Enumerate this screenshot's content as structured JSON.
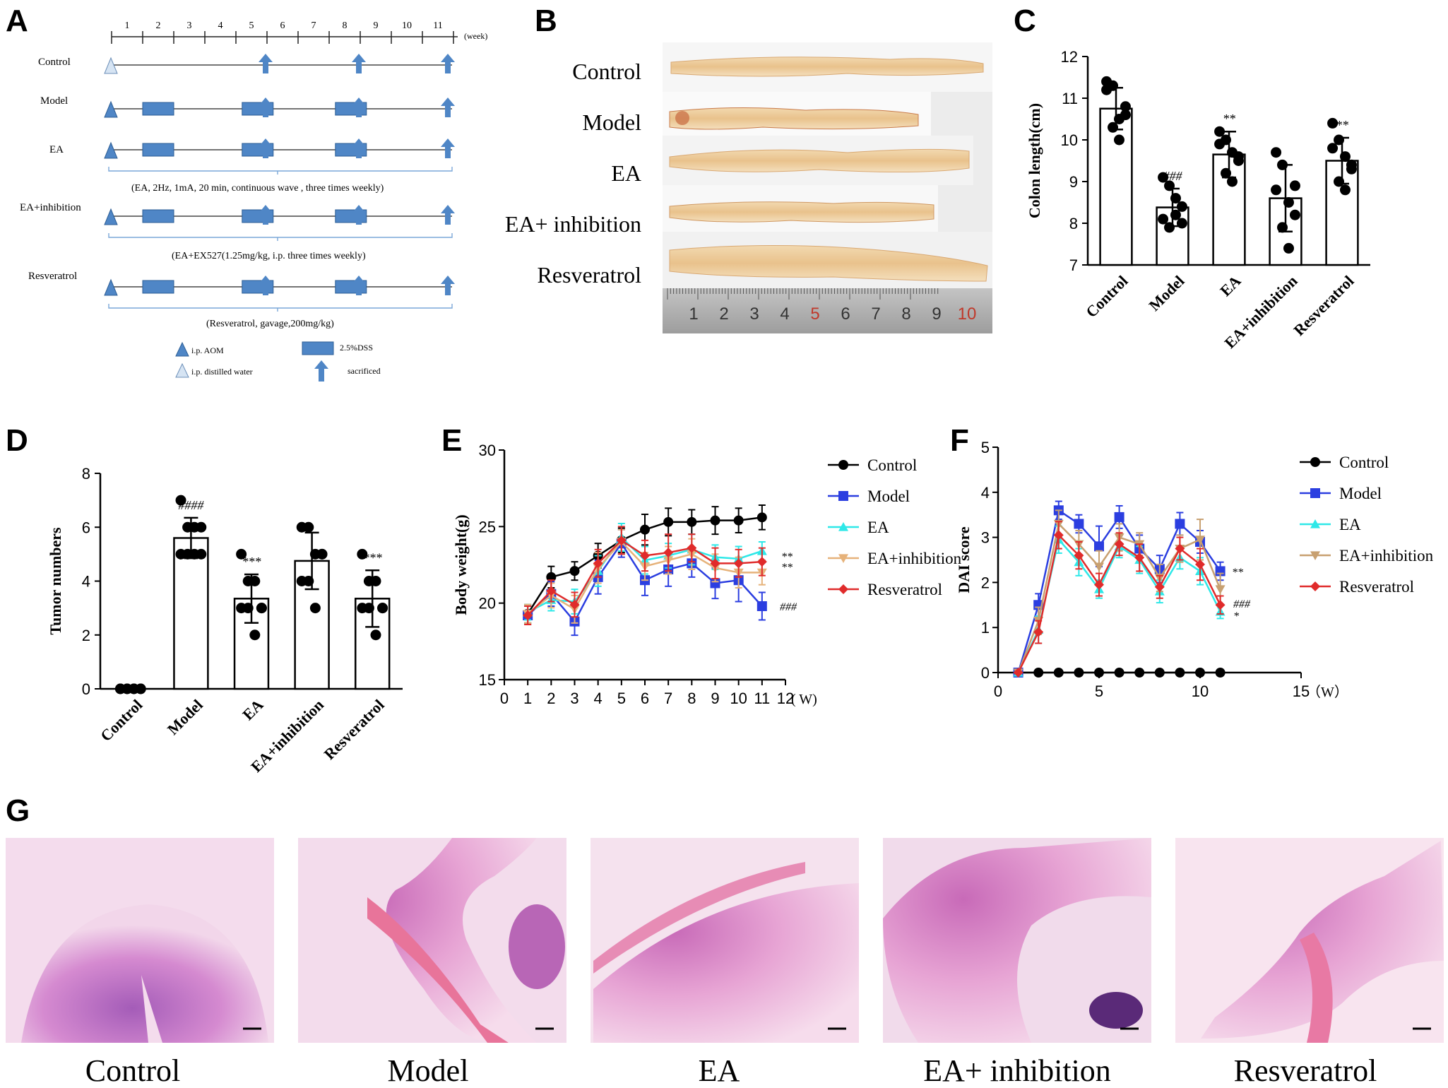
{
  "panel_letters": [
    "A",
    "B",
    "C",
    "D",
    "E",
    "F",
    "G"
  ],
  "panel_a": {
    "week_ticks": [
      "1",
      "2",
      "3",
      "4",
      "5",
      "6",
      "7",
      "8",
      "9",
      "10",
      "11"
    ],
    "week_unit": "(week)",
    "groups": [
      "Control",
      "Model",
      "EA",
      "EA+inhibition",
      "Resveratrol"
    ],
    "notes": [
      "(EA, 2Hz, 1mA, 20 min, continuous wave , three times weekly)",
      "(EA+EX527(1.25mg/kg, i.p. three times weekly)",
      "(Resveratrol, gavage,200mg/kg)"
    ],
    "legend": {
      "aom": "i.p. AOM",
      "dss": "2.5%DSS",
      "water": "i.p. distilled water",
      "sacrificed": "sacrificed"
    },
    "colors": {
      "marker": "#4f86c6",
      "line": "#222222",
      "bracket": "#7aa7d8"
    }
  },
  "panel_b": {
    "labels": [
      "Control",
      "Model",
      "EA",
      "EA+ inhibition",
      "Resveratrol"
    ],
    "ruler": [
      "1",
      "2",
      "3",
      "4",
      "5",
      "6",
      "7",
      "8",
      "9",
      "10"
    ]
  },
  "panel_g": {
    "captions": [
      "Control",
      "Model",
      "EA",
      "EA+ inhibition",
      "Resveratrol"
    ]
  },
  "chart_data": [
    {
      "panel": "C",
      "type": "bar",
      "ylabel": "Colon length(cm)",
      "ylim": [
        7,
        12
      ],
      "yticks": [
        7,
        8,
        9,
        10,
        11,
        12
      ],
      "categories": [
        "Control",
        "Model",
        "EA",
        "EA+inhibition",
        "Resveratrol"
      ],
      "values": [
        10.75,
        8.38,
        9.65,
        8.6,
        9.5
      ],
      "errors": [
        0.5,
        0.45,
        0.55,
        0.8,
        0.55
      ],
      "significance": [
        "",
        "###",
        "**",
        "",
        "**"
      ],
      "points": [
        [
          11.4,
          11.3,
          10.5,
          10.8,
          11.2,
          10.3,
          10.0,
          10.6
        ],
        [
          9.1,
          8.9,
          8.2,
          8.4,
          8.1,
          7.9,
          8.6,
          8.0
        ],
        [
          10.2,
          10.0,
          9.7,
          9.5,
          9.9,
          9.2,
          9.0,
          9.6
        ],
        [
          9.7,
          9.4,
          8.5,
          8.2,
          8.8,
          7.9,
          7.4,
          8.9
        ],
        [
          10.4,
          10.0,
          9.6,
          9.3,
          9.8,
          9.0,
          8.8,
          9.4
        ]
      ]
    },
    {
      "panel": "D",
      "type": "bar",
      "ylabel": "Tumor numbers",
      "ylim": [
        0,
        8
      ],
      "yticks": [
        0,
        2,
        4,
        6,
        8
      ],
      "categories": [
        "Control",
        "Model",
        "EA",
        "EA+inhibition",
        "Resveratrol"
      ],
      "values": [
        0,
        5.6,
        3.35,
        4.75,
        3.35
      ],
      "errors": [
        0,
        0.75,
        0.9,
        1.05,
        1.05
      ],
      "significance": [
        "",
        "####",
        "***",
        "",
        "***"
      ],
      "points": [
        [
          0,
          0,
          0,
          0,
          0,
          0,
          0,
          0
        ],
        [
          7,
          6,
          6,
          5,
          5,
          5,
          5,
          6
        ],
        [
          5,
          4,
          4,
          3,
          3,
          3,
          2,
          3
        ],
        [
          6,
          6,
          5,
          5,
          4,
          4,
          3,
          5
        ],
        [
          5,
          4,
          4,
          3,
          3,
          3,
          2,
          3
        ]
      ]
    },
    {
      "panel": "E",
      "type": "line",
      "ylabel": "Body weight(g)",
      "xlabel": "( W)",
      "xlim": [
        0,
        12
      ],
      "ylim": [
        15,
        30
      ],
      "xticks": [
        0,
        1,
        2,
        3,
        4,
        5,
        6,
        7,
        8,
        9,
        10,
        11,
        12
      ],
      "yticks": [
        15,
        20,
        25,
        30
      ],
      "x": [
        1,
        2,
        3,
        4,
        5,
        6,
        7,
        8,
        9,
        10,
        11
      ],
      "series": [
        {
          "name": "Control",
          "color": "#000000",
          "marker": "circle",
          "values": [
            19.3,
            21.7,
            22.1,
            23.1,
            24.1,
            24.8,
            25.3,
            25.3,
            25.4,
            25.4,
            25.6
          ],
          "err": [
            0.6,
            0.7,
            0.6,
            0.8,
            0.8,
            1.0,
            0.9,
            0.8,
            0.9,
            0.8,
            0.8
          ]
        },
        {
          "name": "Model",
          "color": "#2b3ee0",
          "marker": "square",
          "values": [
            19.2,
            20.6,
            18.8,
            21.7,
            23.9,
            21.5,
            22.2,
            22.6,
            21.3,
            21.5,
            19.8
          ],
          "err": [
            0.6,
            0.8,
            0.9,
            1.1,
            0.9,
            1.0,
            1.1,
            0.9,
            1.0,
            1.4,
            0.9
          ]
        },
        {
          "name": "EA",
          "color": "#2ee8e8",
          "marker": "triangle-up",
          "values": [
            19.4,
            20.2,
            20.1,
            22.1,
            24.3,
            22.8,
            23.1,
            23.5,
            23.0,
            22.9,
            23.4
          ],
          "err": [
            0.5,
            0.7,
            0.8,
            1.0,
            0.9,
            0.9,
            0.8,
            1.0,
            0.8,
            0.8,
            0.6
          ]
        },
        {
          "name": "EA+inhibition",
          "color": "#e6b27a",
          "marker": "triangle-down",
          "values": [
            19.3,
            20.5,
            19.6,
            22.3,
            24.0,
            22.4,
            22.8,
            23.2,
            22.3,
            22.0,
            22.0
          ],
          "err": [
            0.6,
            0.8,
            0.9,
            1.0,
            0.8,
            0.9,
            0.9,
            1.0,
            0.9,
            1.0,
            0.8
          ]
        },
        {
          "name": "Resveratrol",
          "color": "#e02b2b",
          "marker": "diamond",
          "values": [
            19.2,
            20.8,
            19.9,
            22.6,
            24.1,
            23.1,
            23.3,
            23.6,
            22.6,
            22.6,
            22.7
          ],
          "err": [
            0.6,
            0.7,
            0.8,
            0.9,
            0.9,
            1.0,
            1.2,
            0.9,
            1.0,
            0.9,
            0.9
          ]
        }
      ],
      "annotations": [
        "**",
        "**",
        "###"
      ]
    },
    {
      "panel": "F",
      "type": "line",
      "ylabel": "DAI score",
      "xlabel": "（W）",
      "xlim": [
        0,
        15
      ],
      "ylim": [
        0,
        5
      ],
      "xticks": [
        0,
        5,
        10,
        15
      ],
      "yticks": [
        0,
        1,
        2,
        3,
        4,
        5
      ],
      "x": [
        1,
        2,
        3,
        4,
        5,
        6,
        7,
        8,
        9,
        10,
        11
      ],
      "series": [
        {
          "name": "Control",
          "color": "#000000",
          "marker": "circle",
          "values": [
            0,
            0,
            0,
            0,
            0,
            0,
            0,
            0,
            0,
            0,
            0
          ],
          "err": [
            0,
            0,
            0,
            0,
            0,
            0,
            0,
            0,
            0,
            0,
            0
          ]
        },
        {
          "name": "Model",
          "color": "#2b3ee0",
          "marker": "square",
          "values": [
            0,
            1.5,
            3.6,
            3.3,
            2.8,
            3.45,
            2.75,
            2.3,
            3.3,
            2.9,
            2.25
          ],
          "err": [
            0,
            0.25,
            0.2,
            0.2,
            0.45,
            0.25,
            0.3,
            0.3,
            0.25,
            0.25,
            0.2
          ]
        },
        {
          "name": "EA",
          "color": "#2ee8e8",
          "marker": "triangle-up",
          "values": [
            0,
            0.95,
            2.95,
            2.45,
            1.85,
            2.8,
            2.5,
            1.8,
            2.55,
            2.25,
            1.35
          ],
          "err": [
            0,
            0.3,
            0.3,
            0.3,
            0.2,
            0.25,
            0.3,
            0.25,
            0.25,
            0.3,
            0.15
          ]
        },
        {
          "name": "EA+inhibition",
          "color": "#c8a070",
          "marker": "triangle-down",
          "values": [
            0,
            1.15,
            3.3,
            2.85,
            2.35,
            3.0,
            2.85,
            2.1,
            2.75,
            2.95,
            1.85
          ],
          "err": [
            0,
            0.3,
            0.3,
            0.3,
            0.35,
            0.3,
            0.25,
            0.3,
            0.3,
            0.45,
            0.35
          ]
        },
        {
          "name": "Resveratrol",
          "color": "#e02b2b",
          "marker": "diamond",
          "values": [
            0,
            0.9,
            3.05,
            2.6,
            1.95,
            2.85,
            2.55,
            1.9,
            2.75,
            2.4,
            1.5
          ],
          "err": [
            0,
            0.25,
            0.3,
            0.3,
            0.25,
            0.25,
            0.3,
            0.25,
            0.25,
            0.35,
            0.2
          ]
        }
      ],
      "annotations": [
        "###",
        "*",
        "**"
      ]
    }
  ]
}
